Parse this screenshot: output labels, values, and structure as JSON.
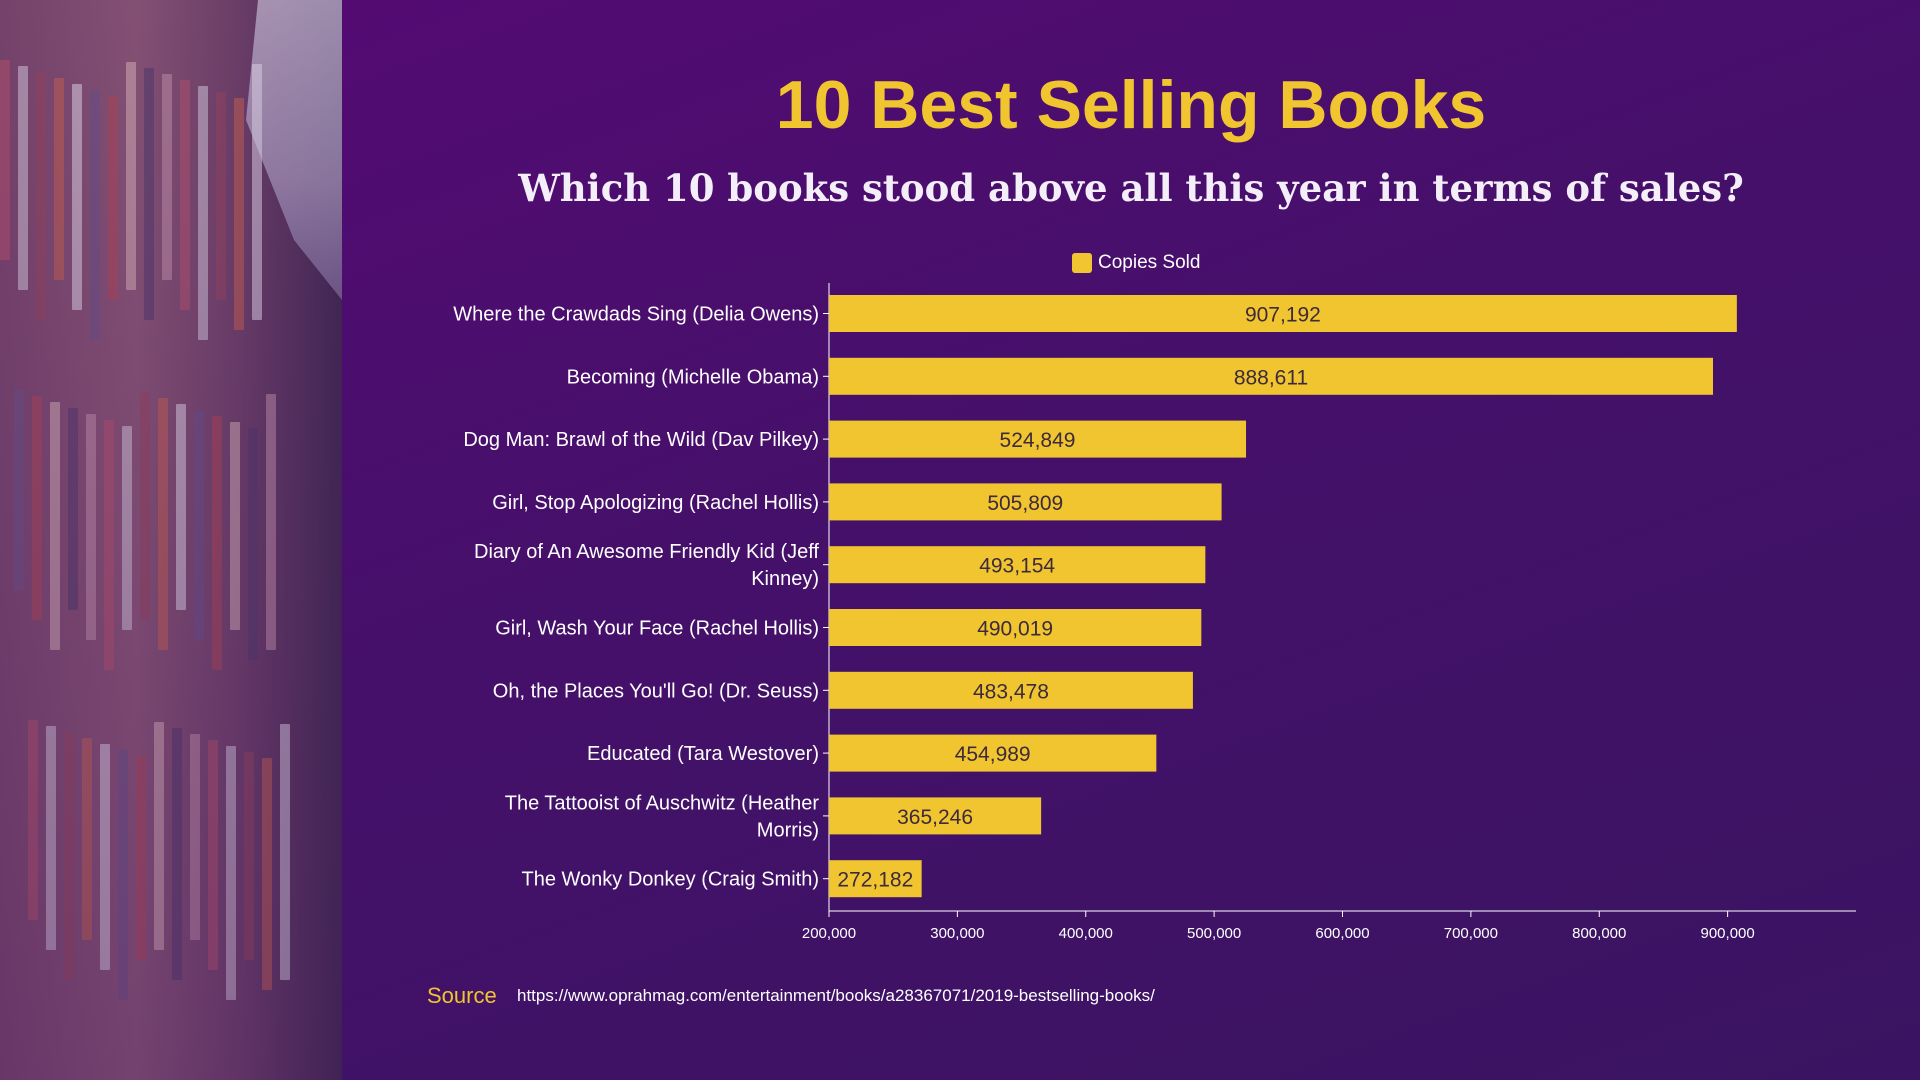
{
  "title": "10 Best Selling Books",
  "subtitle": "Which 10 books stood above all this year in terms of sales?",
  "legend": {
    "label": "Copies Sold"
  },
  "source": {
    "label": "Source",
    "url": "https://www.oprahmag.com/entertainment/books/a28367071/2019-bestselling-books/"
  },
  "colors": {
    "bar": "#f0c530",
    "background": "#4a0f6e",
    "title": "#f0c530",
    "text": "#ffffff",
    "value_label": "#3d2a3a"
  },
  "chart_data": {
    "type": "bar",
    "orientation": "horizontal",
    "title": "10 Best Selling Books",
    "subtitle": "Which 10 books stood above all this year in terms of sales?",
    "categories": [
      "Where the Crawdads Sing (Delia Owens)",
      "Becoming (Michelle Obama)",
      "Dog Man: Brawl of the Wild (Dav Pilkey)",
      "Girl, Stop Apologizing (Rachel Hollis)",
      "Diary of An Awesome Friendly Kid (Jeff Kinney)",
      "Girl, Wash Your Face (Rachel Hollis)",
      "Oh, the Places You'll Go! (Dr. Seuss)",
      "Educated (Tara Westover)",
      "The Tattooist of Auschwitz (Heather Morris)",
      "The Wonky Donkey (Craig Smith)"
    ],
    "category_lines": [
      [
        "Where the Crawdads Sing (Delia Owens)"
      ],
      [
        "Becoming (Michelle Obama)"
      ],
      [
        "Dog Man: Brawl of the Wild (Dav Pilkey)"
      ],
      [
        "Girl, Stop Apologizing (Rachel Hollis)"
      ],
      [
        "Diary of An Awesome Friendly Kid (Jeff",
        "Kinney)"
      ],
      [
        "Girl, Wash Your Face (Rachel Hollis)"
      ],
      [
        "Oh, the Places You'll Go! (Dr. Seuss)"
      ],
      [
        "Educated (Tara Westover)"
      ],
      [
        "The Tattooist of Auschwitz (Heather",
        "Morris)"
      ],
      [
        "The Wonky Donkey (Craig Smith)"
      ]
    ],
    "series": [
      {
        "name": "Copies Sold",
        "values": [
          907192,
          888611,
          524849,
          505809,
          493154,
          490019,
          483478,
          454989,
          365246,
          272182
        ],
        "labels": [
          "907,192",
          "888,611",
          "524,849",
          "505,809",
          "493,154",
          "490,019",
          "483,478",
          "454,989",
          "365,246",
          "272,182"
        ]
      }
    ],
    "xlim": [
      200000,
      1000000
    ],
    "xticks": [
      200000,
      300000,
      400000,
      500000,
      600000,
      700000,
      800000,
      900000
    ],
    "xtick_labels": [
      "200,000",
      "300,000",
      "400,000",
      "500,000",
      "600,000",
      "700,000",
      "800,000",
      "900,000"
    ],
    "xlabel": "",
    "ylabel": "",
    "grid": false,
    "legend_position": "top-center"
  }
}
